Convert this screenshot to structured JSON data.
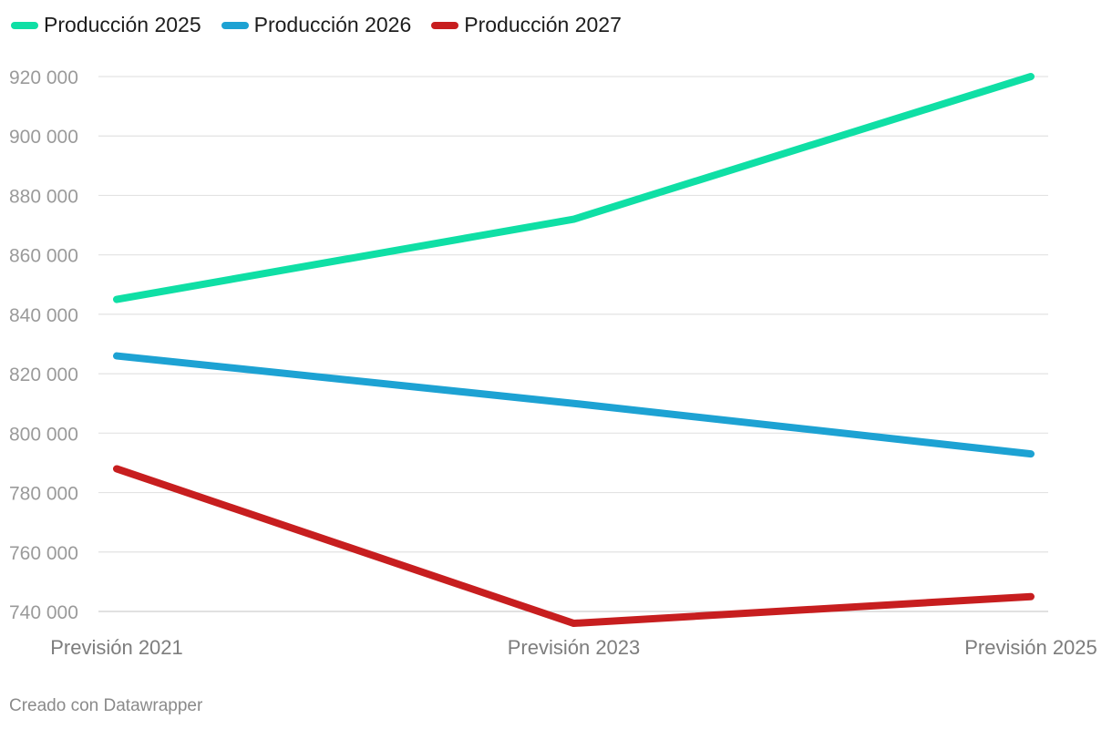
{
  "chart_data": {
    "type": "line",
    "categories": [
      "Previsión 2021",
      "Previsión 2023",
      "Previsión 2025"
    ],
    "series": [
      {
        "name": "Producción 2025",
        "color": "#0fdfa5",
        "values": [
          845000,
          872000,
          920000
        ]
      },
      {
        "name": "Producción 2026",
        "color": "#1da2d3",
        "values": [
          826000,
          810000,
          793000
        ]
      },
      {
        "name": "Producción 2027",
        "color": "#c71e1f",
        "values": [
          788000,
          736000,
          745000
        ]
      }
    ],
    "yticks": [
      "740 000",
      "760 000",
      "780 000",
      "800 000",
      "820 000",
      "840 000",
      "860 000",
      "880 000",
      "900 000",
      "920 000"
    ],
    "ytick_values": [
      740000,
      760000,
      780000,
      800000,
      820000,
      840000,
      860000,
      880000,
      900000,
      920000
    ],
    "ylim": [
      740000,
      920000
    ],
    "grid": true,
    "legend_position": "top-left"
  },
  "footer": {
    "credit": "Creado con Datawrapper"
  }
}
